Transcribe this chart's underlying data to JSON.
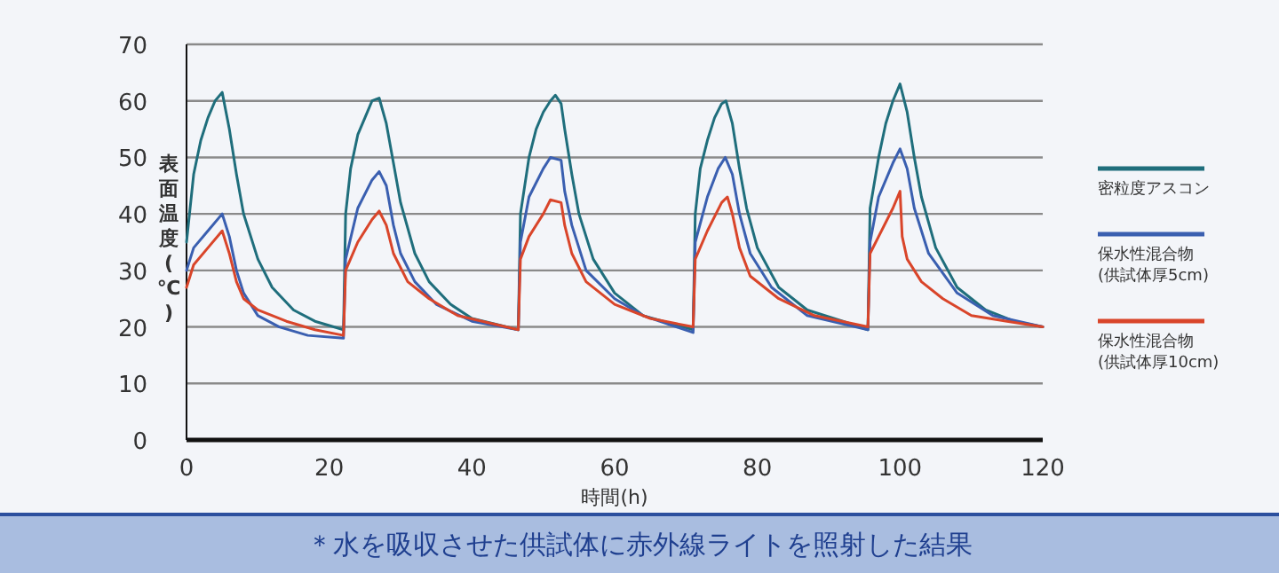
{
  "chart_data": {
    "type": "line",
    "xlabel": "時間(h)",
    "ylabel": "表面温度(℃)",
    "xlim": [
      0,
      120
    ],
    "ylim": [
      0,
      70
    ],
    "xticks": [
      0,
      20,
      40,
      60,
      80,
      100,
      120
    ],
    "yticks": [
      0,
      10,
      20,
      30,
      40,
      50,
      60,
      70
    ],
    "grid": "y",
    "legend": "right",
    "annotations": [
      "＊水を吸収させた供試体に赤外線ライトを照射した結果"
    ],
    "series": [
      {
        "name": "密粒度アスコン",
        "color": "#1f6e7c",
        "x": [
          0,
          1,
          2,
          3,
          4,
          5,
          6,
          7,
          8,
          10,
          12,
          15,
          18,
          22,
          22.3,
          23,
          24,
          25,
          26,
          27,
          28,
          29,
          30,
          32,
          34,
          37,
          40,
          46.5,
          46.8,
          48,
          49,
          50,
          51,
          51.7,
          52.5,
          53,
          54,
          55,
          57,
          60,
          64,
          71,
          71.3,
          72,
          73,
          74,
          75,
          75.6,
          76.5,
          77.5,
          78.5,
          80,
          83,
          87,
          92,
          95.5,
          95.8,
          97,
          98,
          99,
          100,
          101,
          102,
          103,
          105,
          108,
          112,
          116,
          120
        ],
        "values": [
          35,
          47,
          53,
          57,
          60,
          61.5,
          55,
          47,
          40,
          32,
          27,
          23,
          21,
          19.5,
          40,
          48,
          54,
          57,
          60,
          60.5,
          56,
          49,
          42,
          33,
          28,
          24,
          21.5,
          19.5,
          40,
          50,
          55,
          58,
          60,
          61,
          59.5,
          55,
          47,
          40,
          32,
          26,
          22,
          19.5,
          40,
          48,
          53,
          57,
          59.5,
          60,
          56,
          48,
          41,
          34,
          27,
          23,
          21,
          19.5,
          41,
          50,
          56,
          60,
          63,
          58,
          50,
          43,
          34,
          27,
          23,
          21,
          20
        ]
      },
      {
        "name": "保水性混合物\n(供試体厚5cm)",
        "color": "#3a5fb0",
        "x": [
          0,
          1,
          3,
          5,
          6,
          7,
          8,
          10,
          13,
          17,
          22,
          22.3,
          24,
          26,
          27,
          28,
          29,
          30,
          32,
          35,
          40,
          46.5,
          46.8,
          48,
          50,
          51,
          52.5,
          53,
          54,
          56,
          60,
          64,
          71,
          71.3,
          73,
          74.5,
          75.5,
          76.5,
          77.5,
          79,
          82,
          87,
          95.5,
          95.8,
          97,
          99,
          100,
          101,
          102,
          104,
          108,
          113,
          120
        ],
        "values": [
          30,
          34,
          37,
          40,
          36,
          30,
          26,
          22,
          20,
          18.5,
          18,
          32,
          41,
          46,
          47.5,
          45,
          38,
          33,
          28,
          24,
          21,
          19.5,
          35,
          43,
          48,
          50,
          49.5,
          44,
          38,
          30,
          25,
          22,
          19,
          35,
          43,
          48,
          50,
          47,
          40,
          33,
          27,
          22,
          19.5,
          35,
          43,
          49,
          51.5,
          48,
          41,
          33,
          26,
          22,
          20
        ]
      },
      {
        "name": "保水性混合物\n(供試体厚10cm)",
        "color": "#d9452a",
        "x": [
          0,
          1,
          3,
          5,
          6,
          7,
          8,
          10,
          14,
          18,
          22,
          22.3,
          24,
          26,
          27,
          28,
          29,
          31,
          34,
          38,
          46.5,
          46.8,
          48,
          50,
          51,
          52.5,
          53,
          54,
          56,
          60,
          65,
          71,
          71.3,
          73,
          75,
          75.8,
          76.5,
          77.5,
          79,
          83,
          88,
          95.5,
          95.8,
          97,
          99,
          100,
          100.3,
          101,
          103,
          106,
          110,
          115,
          120
        ],
        "values": [
          27,
          31,
          34,
          37,
          33,
          28,
          25,
          23,
          21,
          19.5,
          18.5,
          30,
          35,
          39,
          40.5,
          38,
          33,
          28,
          25,
          22,
          19.5,
          32,
          36,
          40,
          42.5,
          42,
          38,
          33,
          28,
          24,
          21.5,
          20,
          32,
          37,
          42,
          43,
          40,
          34,
          29,
          25,
          22,
          20,
          33,
          36,
          41,
          44,
          36,
          32,
          28,
          25,
          22,
          21,
          20
        ]
      }
    ]
  }
}
